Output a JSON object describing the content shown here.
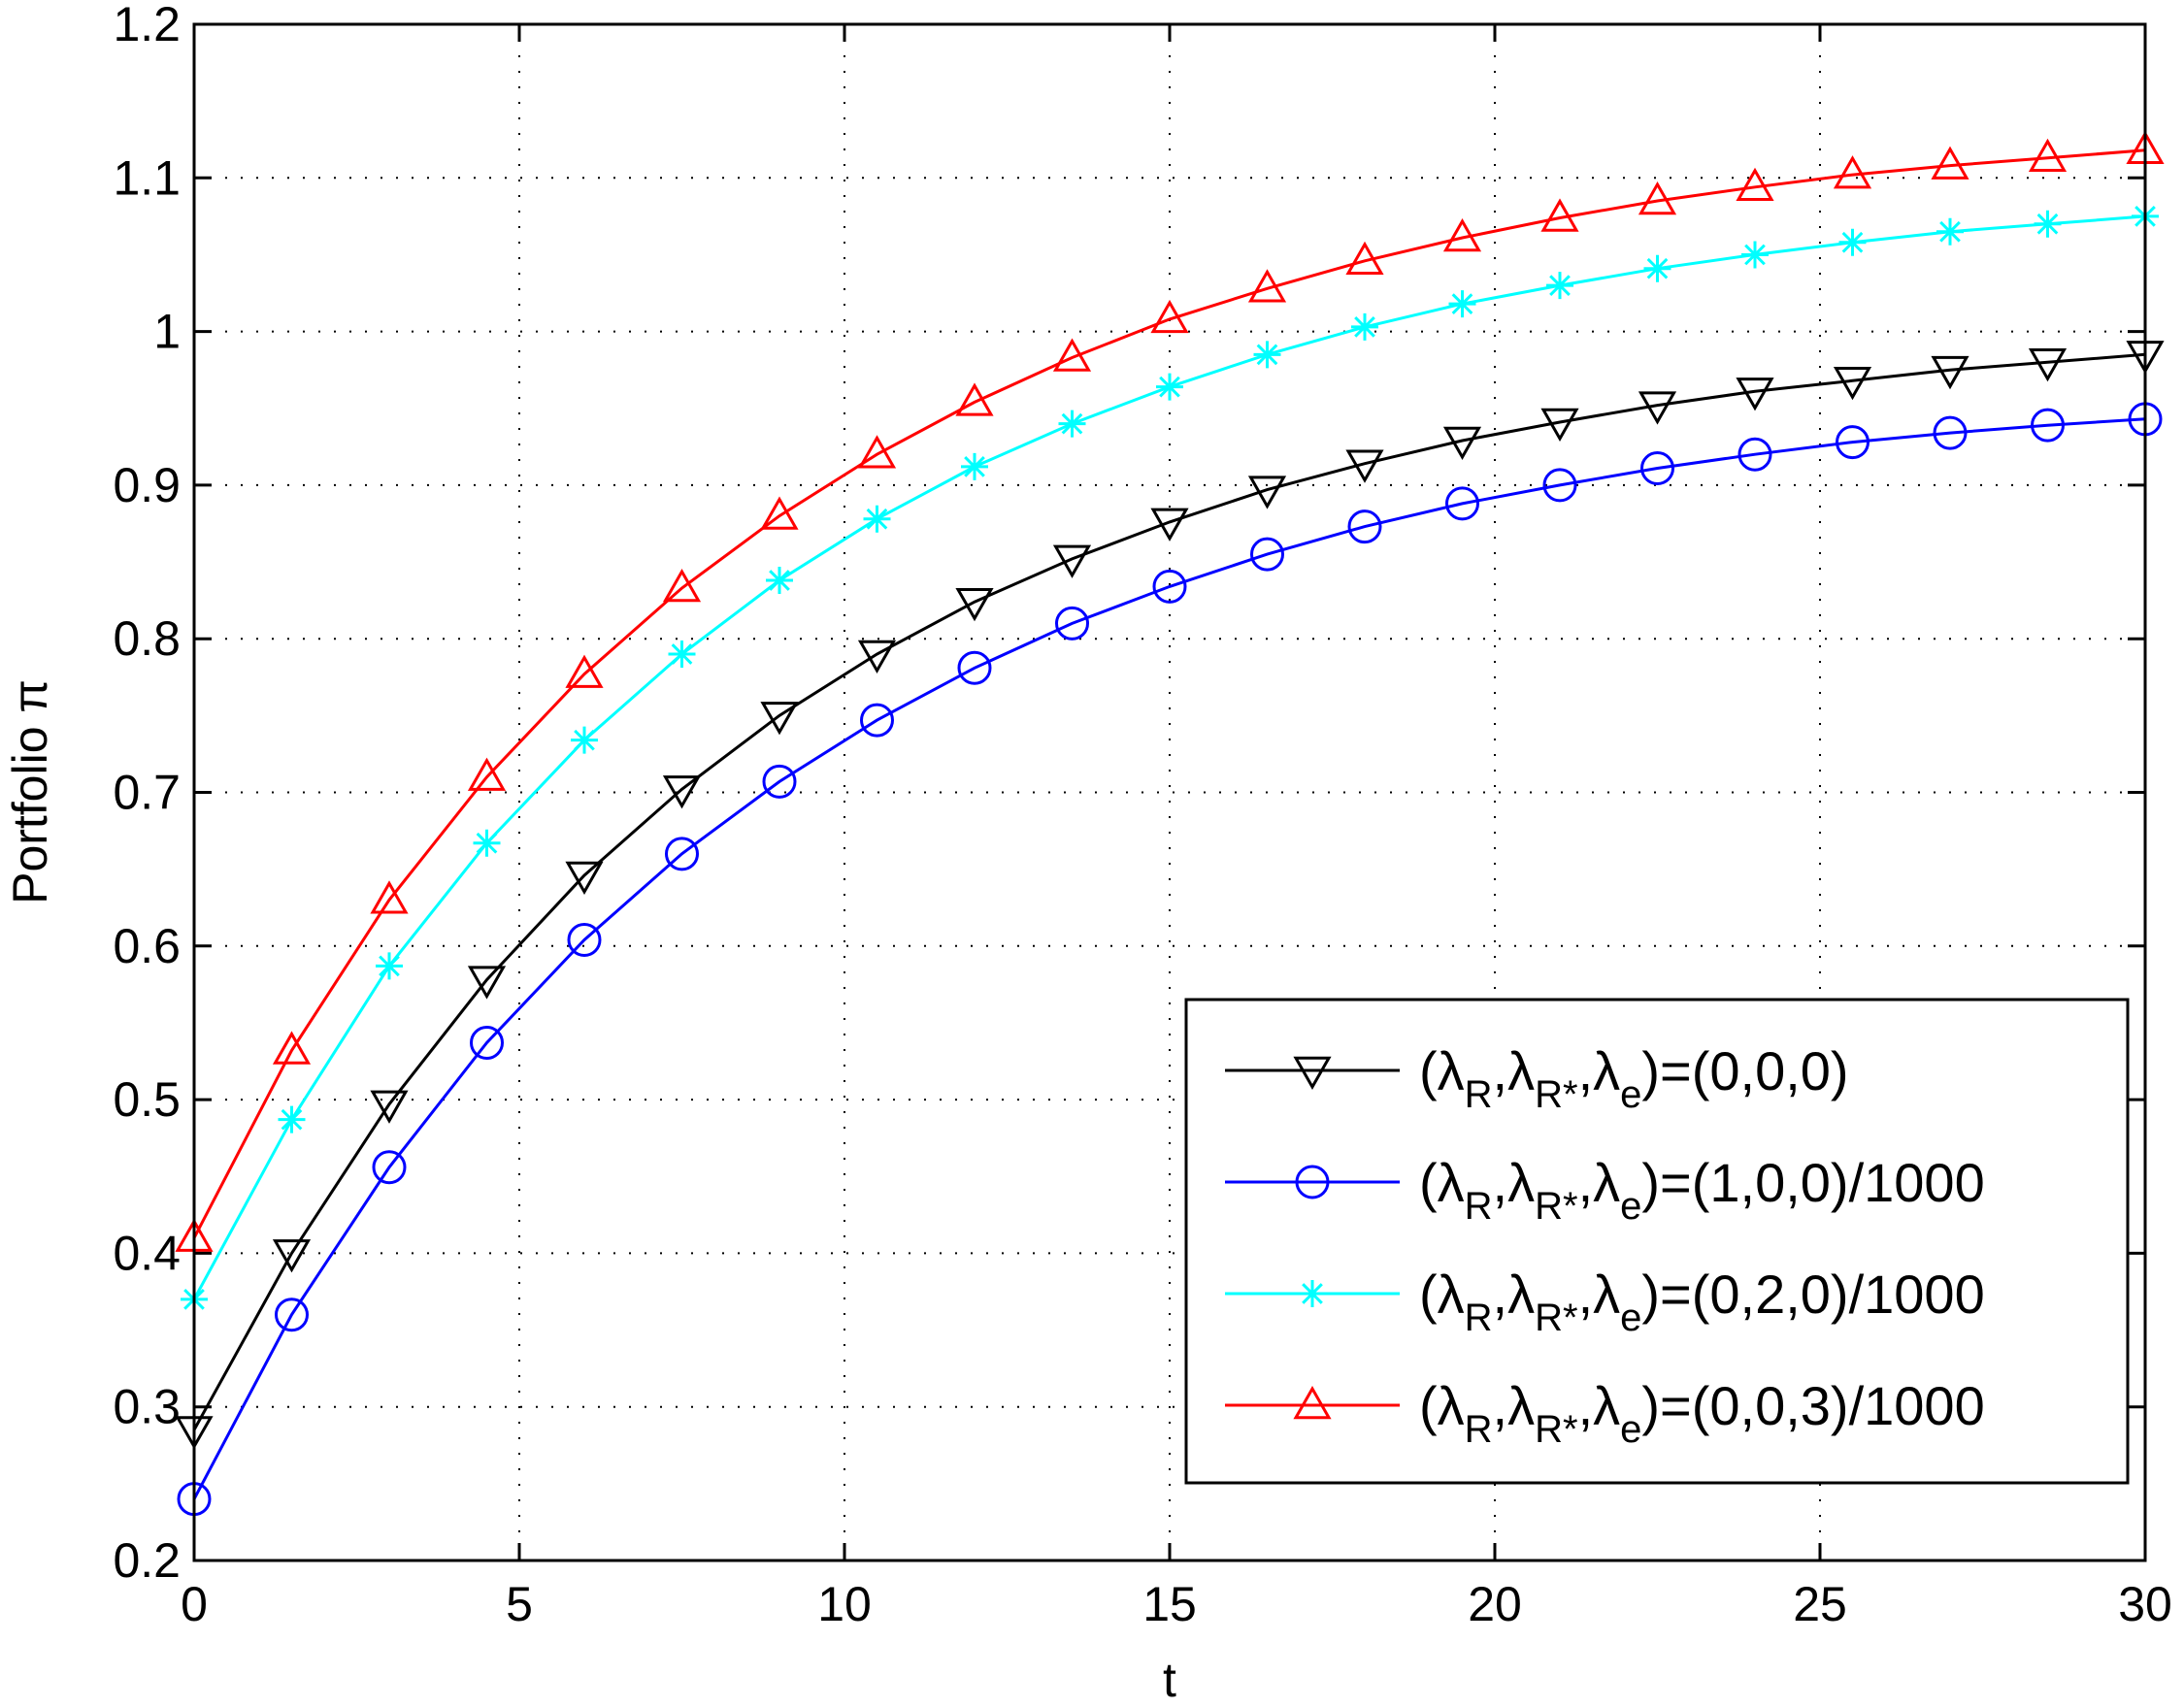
{
  "chart_data": {
    "type": "line",
    "xlabel": "t",
    "ylabel": "Portfolio  π",
    "xlim": [
      0,
      30
    ],
    "ylim": [
      0.2,
      1.2
    ],
    "xticks": [
      0,
      5,
      10,
      15,
      20,
      25,
      30
    ],
    "yticks": [
      0.2,
      0.3,
      0.4,
      0.5,
      0.6,
      0.7,
      0.8,
      0.9,
      1,
      1.1,
      1.2
    ],
    "xtick_labels": [
      "0",
      "5",
      "10",
      "15",
      "20",
      "25",
      "30"
    ],
    "ytick_labels": [
      "0.2",
      "0.3",
      "0.4",
      "0.5",
      "0.6",
      "0.7",
      "0.8",
      "0.9",
      "1",
      "1.1",
      "1.2"
    ],
    "grid": true,
    "legend_position": "bottom-right",
    "x": [
      0,
      1.5,
      3,
      4.5,
      6,
      7.5,
      9,
      10.5,
      12,
      13.5,
      15,
      16.5,
      18,
      19.5,
      21,
      22.5,
      24,
      25.5,
      27,
      28.5,
      30
    ],
    "series": [
      {
        "name": "(λR,λR*,λe)=(0,0,0)",
        "legend": {
          "pre": "(λ",
          "s1": "R",
          "mid1": ",λ",
          "s2": "R*",
          "mid2": ",λ",
          "s3": "e",
          "post": ")=(0,0,0)"
        },
        "color": "#000000",
        "marker": "triangle-down",
        "values": [
          0.285,
          0.4,
          0.497,
          0.578,
          0.646,
          0.702,
          0.75,
          0.79,
          0.824,
          0.852,
          0.876,
          0.897,
          0.914,
          0.929,
          0.941,
          0.952,
          0.961,
          0.968,
          0.975,
          0.98,
          0.985
        ]
      },
      {
        "name": "(λR,λR*,λe)=(1,0,0)/1000",
        "legend": {
          "pre": "(λ",
          "s1": "R",
          "mid1": ",λ",
          "s2": "R*",
          "mid2": ",λ",
          "s3": "e",
          "post": ")=(1,0,0)/1000"
        },
        "color": "#0000ff",
        "marker": "circle",
        "values": [
          0.24,
          0.36,
          0.456,
          0.537,
          0.604,
          0.66,
          0.707,
          0.747,
          0.781,
          0.81,
          0.834,
          0.855,
          0.873,
          0.888,
          0.9,
          0.911,
          0.92,
          0.928,
          0.934,
          0.939,
          0.943
        ]
      },
      {
        "name": "(λR,λR*,λe)=(0,2,0)/1000",
        "legend": {
          "pre": "(λ",
          "s1": "R",
          "mid1": ",λ",
          "s2": "R*",
          "mid2": ",λ",
          "s3": "e",
          "post": ")=(0,2,0)/1000"
        },
        "color": "#00ffff",
        "marker": "asterisk",
        "values": [
          0.37,
          0.487,
          0.587,
          0.667,
          0.734,
          0.79,
          0.838,
          0.878,
          0.912,
          0.94,
          0.964,
          0.985,
          1.003,
          1.018,
          1.03,
          1.041,
          1.05,
          1.058,
          1.065,
          1.07,
          1.075
        ]
      },
      {
        "name": "(λR,λR*,λe)=(0,0,3)/1000",
        "legend": {
          "pre": "(λ",
          "s1": "R",
          "mid1": ",λ",
          "s2": "R*",
          "mid2": ",λ",
          "s3": "e",
          "post": ")=(0,0,3)/1000"
        },
        "color": "#ff0000",
        "marker": "triangle-up",
        "values": [
          0.41,
          0.532,
          0.63,
          0.71,
          0.777,
          0.833,
          0.88,
          0.92,
          0.954,
          0.983,
          1.008,
          1.028,
          1.046,
          1.061,
          1.074,
          1.085,
          1.094,
          1.102,
          1.108,
          1.113,
          1.118
        ]
      }
    ]
  }
}
